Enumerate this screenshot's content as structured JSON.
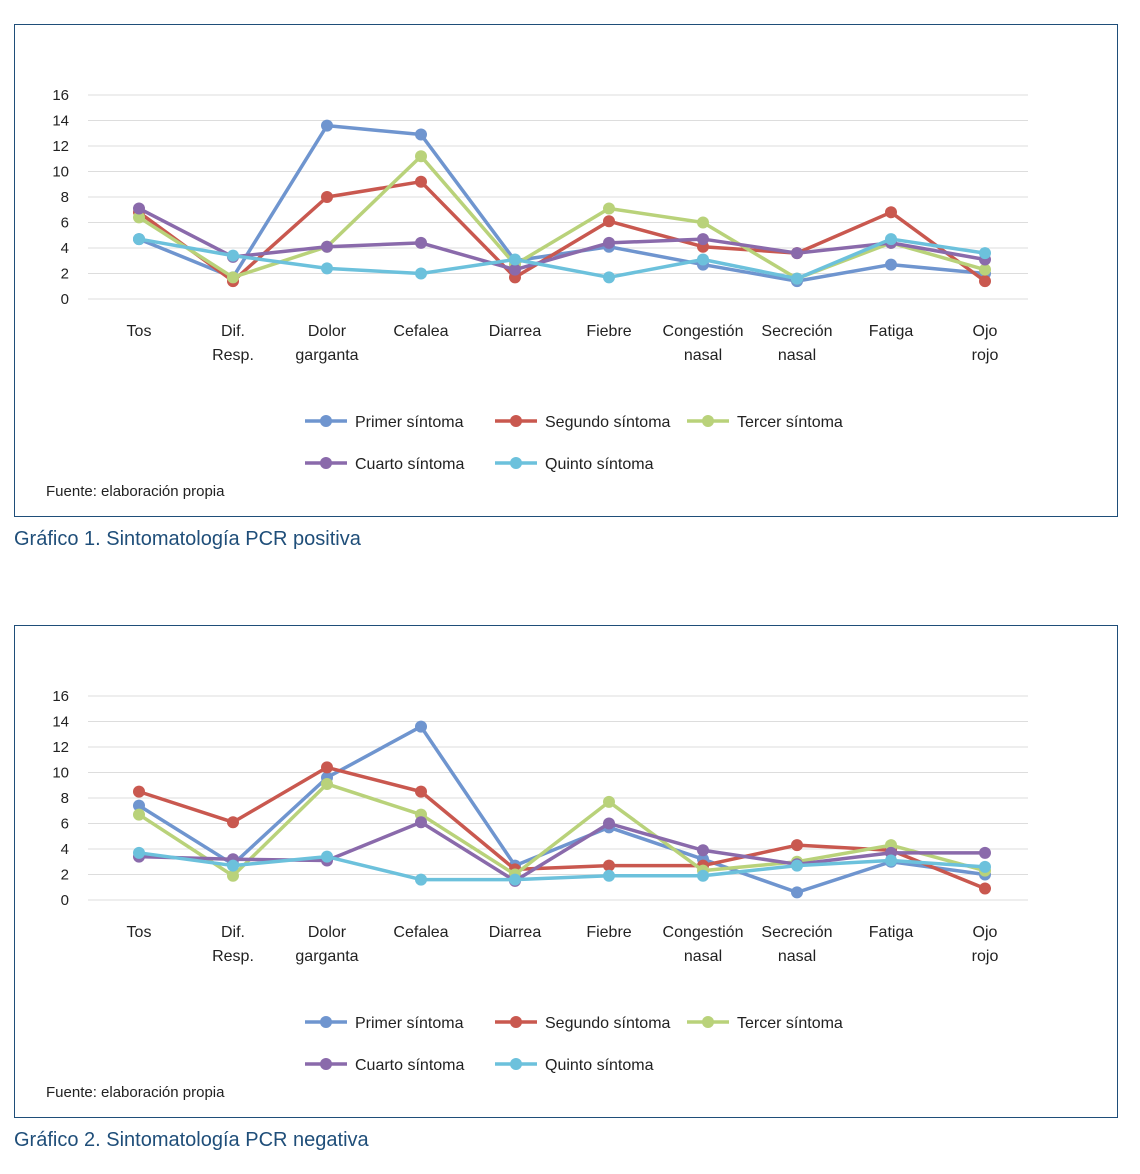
{
  "colors": {
    "primer": "#6f95cf",
    "segundo": "#c9584f",
    "tercer": "#b9d27a",
    "cuarto": "#8a6aab",
    "quinto": "#6cc1dc",
    "frame": "#1f4e79",
    "caption": "#1f4e79",
    "grid": "#dddddd"
  },
  "chart_data": [
    {
      "type": "line",
      "title": "Gráfico 1. Sintomatología PCR positiva",
      "source_note": "Fuente: elaboración propia",
      "categories": [
        [
          "Tos"
        ],
        [
          "Dif.",
          "Resp."
        ],
        [
          "Dolor",
          "garganta"
        ],
        [
          "Cefalea"
        ],
        [
          "Diarrea"
        ],
        [
          "Fiebre"
        ],
        [
          "Congestión",
          "nasal"
        ],
        [
          "Secreción",
          "nasal"
        ],
        [
          "Fatiga"
        ],
        [
          "Ojo",
          "rojo"
        ]
      ],
      "ylim": [
        0,
        16
      ],
      "yticks": [
        0,
        2,
        4,
        6,
        8,
        10,
        12,
        14,
        16
      ],
      "grid": true,
      "legend_position": "bottom",
      "series": [
        {
          "name": "Primer síntoma",
          "color_key": "primer",
          "values": [
            4.7,
            1.7,
            13.6,
            12.9,
            3.0,
            4.1,
            2.7,
            1.4,
            2.7,
            2.0
          ]
        },
        {
          "name": "Segundo síntoma",
          "color_key": "segundo",
          "values": [
            6.8,
            1.4,
            8.0,
            9.2,
            1.7,
            6.1,
            4.1,
            3.6,
            6.8,
            1.4
          ]
        },
        {
          "name": "Tercer síntoma",
          "color_key": "tercer",
          "values": [
            6.4,
            1.7,
            4.1,
            11.2,
            2.7,
            7.1,
            6.0,
            1.6,
            4.4,
            2.3
          ]
        },
        {
          "name": "Cuarto síntoma",
          "color_key": "cuarto",
          "values": [
            7.1,
            3.3,
            4.1,
            4.4,
            2.3,
            4.4,
            4.7,
            3.6,
            4.4,
            3.1
          ]
        },
        {
          "name": "Quinto síntoma",
          "color_key": "quinto",
          "values": [
            4.7,
            3.4,
            2.4,
            2.0,
            3.1,
            1.7,
            3.1,
            1.6,
            4.7,
            3.6
          ]
        }
      ]
    },
    {
      "type": "line",
      "title": "Gráfico 2. Sintomatología PCR negativa",
      "source_note": "Fuente: elaboración propia",
      "categories": [
        [
          "Tos"
        ],
        [
          "Dif.",
          "Resp."
        ],
        [
          "Dolor",
          "garganta"
        ],
        [
          "Cefalea"
        ],
        [
          "Diarrea"
        ],
        [
          "Fiebre"
        ],
        [
          "Congestión",
          "nasal"
        ],
        [
          "Secreción",
          "nasal"
        ],
        [
          "Fatiga"
        ],
        [
          "Ojo",
          "rojo"
        ]
      ],
      "ylim": [
        0,
        16
      ],
      "yticks": [
        0,
        2,
        4,
        6,
        8,
        10,
        12,
        14,
        16
      ],
      "grid": true,
      "legend_position": "bottom",
      "series": [
        {
          "name": "Primer síntoma",
          "color_key": "primer",
          "values": [
            7.4,
            2.8,
            9.6,
            13.6,
            2.7,
            5.7,
            3.2,
            0.6,
            3.0,
            2.0
          ]
        },
        {
          "name": "Segundo síntoma",
          "color_key": "segundo",
          "values": [
            8.5,
            6.1,
            10.4,
            8.5,
            2.4,
            2.7,
            2.7,
            4.3,
            3.9,
            0.9
          ]
        },
        {
          "name": "Tercer síntoma",
          "color_key": "tercer",
          "values": [
            6.7,
            1.9,
            9.1,
            6.7,
            2.0,
            7.7,
            2.3,
            3.0,
            4.3,
            2.3
          ]
        },
        {
          "name": "Cuarto síntoma",
          "color_key": "cuarto",
          "values": [
            3.4,
            3.2,
            3.1,
            6.1,
            1.5,
            6.0,
            3.9,
            2.8,
            3.7,
            3.7
          ]
        },
        {
          "name": "Quinto síntoma",
          "color_key": "quinto",
          "values": [
            3.7,
            2.7,
            3.4,
            1.6,
            1.6,
            1.9,
            1.9,
            2.7,
            3.1,
            2.6
          ]
        }
      ]
    }
  ]
}
